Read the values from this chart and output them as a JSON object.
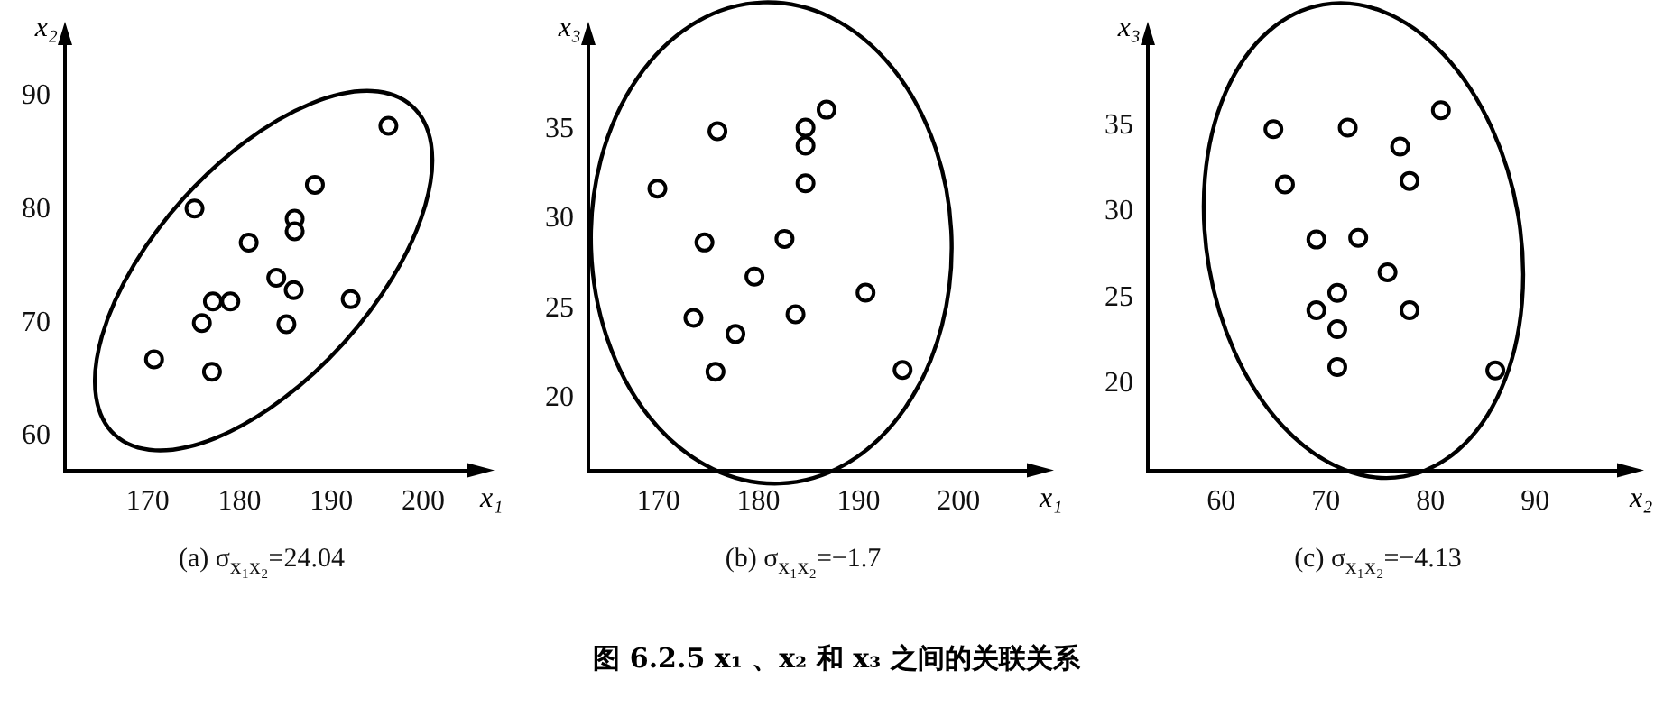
{
  "chart_data": [
    {
      "type": "scatter",
      "title": "(a) σ$_{x₁x₂}$=24.04",
      "xlabel": "x₁",
      "ylabel": "x₂",
      "color": "#000000",
      "marker": "circle",
      "grid": false,
      "legend": false,
      "x": [
        170.7,
        175.1,
        175.9,
        177.1,
        179.0,
        177.0,
        181.0,
        184.0,
        185.9,
        185.1,
        186.0,
        186.0,
        188.2,
        192.1,
        196.2
      ],
      "values": [
        66.8,
        80.1,
        70.0,
        71.9,
        71.9,
        65.7,
        77.1,
        74.0,
        72.9,
        69.9,
        79.2,
        78.1,
        82.2,
        72.1,
        87.4
      ],
      "xlim": [
        161,
        205
      ],
      "ylim": [
        57,
        95
      ],
      "xticks": [
        170,
        180,
        190,
        200
      ],
      "yticks": [
        60,
        70,
        80,
        90
      ],
      "annotations": [
        "图 6.2.5   x₁ 、x₂ 和 x₃ 之间的关联关系"
      ]
    },
    {
      "type": "scatter",
      "title": "(b) σ$_{x₁x₂}$=−1.7",
      "xlabel": "x₁",
      "ylabel": "x₃",
      "color": "#000000",
      "marker": "circle",
      "grid": false,
      "legend": false,
      "x": [
        169.9,
        175.9,
        174.6,
        173.5,
        175.7,
        177.7,
        179.6,
        182.6,
        183.7,
        184.7,
        184.7,
        184.7,
        186.8,
        190.7,
        194.4
      ],
      "values": [
        31.7,
        34.9,
        28.7,
        24.5,
        21.5,
        23.6,
        26.8,
        28.9,
        24.7,
        35.1,
        34.1,
        32.0,
        36.1,
        25.9,
        21.6
      ],
      "xlim": [
        163,
        207
      ],
      "ylim": [
        16,
        40
      ],
      "xticks": [
        170,
        180,
        190,
        200
      ],
      "yticks": [
        20,
        25,
        30,
        35
      ]
    },
    {
      "type": "scatter",
      "title": "(c) σ$_{x₁x₂}$=−4.13",
      "xlabel": "x₂",
      "ylabel": "x₃",
      "color": "#000000",
      "marker": "circle",
      "grid": false,
      "legend": false,
      "x": [
        65.0,
        66.1,
        72.1,
        77.1,
        78.0,
        81.0,
        69.1,
        73.1,
        75.9,
        71.1,
        69.1,
        71.1,
        78.0,
        71.1,
        86.2
      ],
      "values": [
        34.8,
        31.6,
        34.9,
        33.8,
        31.8,
        35.9,
        28.4,
        28.5,
        26.5,
        25.3,
        24.3,
        23.2,
        24.3,
        21.0,
        20.8
      ],
      "xlim": [
        53,
        98
      ],
      "ylim": [
        15,
        40
      ],
      "xticks": [
        60,
        70,
        80,
        90
      ],
      "yticks": [
        20,
        25,
        30,
        35
      ]
    }
  ]
}
